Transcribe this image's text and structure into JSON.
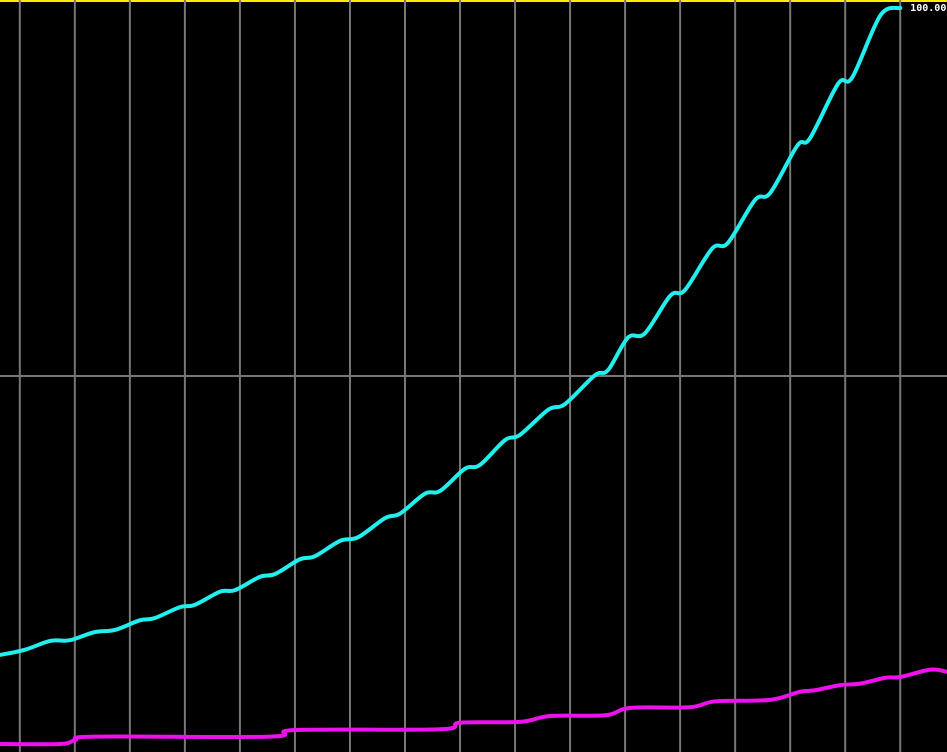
{
  "chart_data": {
    "type": "line",
    "xlim": [
      -0.36,
      16.85
    ],
    "ylim": [
      0,
      100
    ],
    "xticks": [
      0,
      1,
      2,
      3,
      4,
      5,
      6,
      7,
      8,
      9,
      10,
      11,
      12,
      13,
      14,
      15,
      16
    ],
    "yticks": [
      50
    ],
    "grid": true,
    "annotation": {
      "text": "100.00",
      "x": 16,
      "y": 100
    },
    "series": [
      {
        "color": "#22eeee",
        "x": [
          -0.36,
          0.09,
          0.55,
          0.91,
          1.36,
          1.73,
          2.18,
          2.45,
          2.91,
          3.18,
          3.64,
          3.91,
          4.36,
          4.64,
          5.09,
          5.36,
          5.82,
          6.15,
          6.64,
          6.91,
          7.36,
          7.64,
          8.09,
          8.36,
          8.82,
          9.09,
          9.6,
          9.91,
          10.45,
          10.69,
          11.05,
          11.36,
          11.82,
          12.09,
          12.58,
          12.87,
          13.36,
          13.64,
          14.13,
          14.36,
          14.87,
          15.13,
          15.64,
          16
        ],
        "values": [
          12.1,
          12.8,
          14.0,
          14.1,
          15.2,
          15.5,
          16.8,
          17.1,
          18.6,
          18.9,
          20.7,
          20.9,
          22.7,
          23.1,
          25.1,
          25.5,
          27.6,
          28.1,
          30.7,
          31.3,
          34.0,
          34.4,
          37.4,
          37.9,
          41.3,
          42.0,
          45.4,
          46.2,
          50.1,
          50.8,
          55.2,
          55.8,
          60.9,
          61.7,
          67.3,
          68.1,
          73.9,
          74.9,
          81.3,
          82.3,
          89.7,
          90.6,
          99.0,
          100
        ]
      },
      {
        "color": "#ee11ee",
        "x": [
          -0.36,
          0.73,
          1,
          1.36,
          4.55,
          5,
          7.64,
          8,
          9.09,
          9.64,
          10.64,
          11.09,
          12.18,
          12.64,
          13.64,
          14.18,
          14.45,
          14.91,
          15.27,
          15.73,
          16,
          16.55,
          16.85
        ],
        "values": [
          0,
          0,
          0.5,
          1.0,
          1.0,
          1.9,
          2.0,
          2.9,
          3.0,
          3.8,
          3.9,
          4.9,
          5.0,
          5.8,
          6.0,
          7.1,
          7.3,
          8.0,
          8.2,
          9.0,
          9.1,
          10.1,
          9.8
        ]
      }
    ]
  }
}
